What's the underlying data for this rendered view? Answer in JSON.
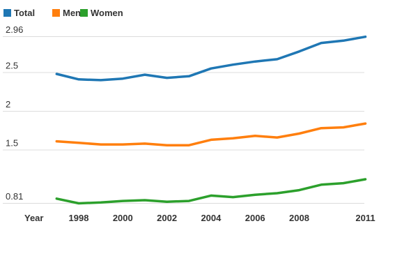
{
  "colors": {
    "background": "#ffffff",
    "text": "#333333",
    "grid": "#dcdcdc",
    "total": "#1f77b4",
    "men": "#ff7f0e",
    "women": "#2ca02c"
  },
  "legend": {
    "items": [
      {
        "label": "Total",
        "color": "#1f77b4"
      },
      {
        "label": "Men",
        "color": "#ff7f0e"
      },
      {
        "label": "Women",
        "color": "#2ca02c"
      }
    ]
  },
  "chart_data": {
    "type": "line",
    "title": "",
    "xlabel": "Year",
    "ylabel": "",
    "x": [
      1997,
      1998,
      1999,
      2000,
      2001,
      2002,
      2003,
      2004,
      2005,
      2006,
      2007,
      2008,
      2009,
      2010,
      2011
    ],
    "series": [
      {
        "name": "Total",
        "color": "#1f77b4",
        "values": [
          2.48,
          2.41,
          2.4,
          2.42,
          2.47,
          2.43,
          2.45,
          2.55,
          2.6,
          2.64,
          2.67,
          2.77,
          2.88,
          2.91,
          2.96
        ]
      },
      {
        "name": "Men",
        "color": "#ff7f0e",
        "values": [
          1.61,
          1.59,
          1.57,
          1.57,
          1.58,
          1.56,
          1.56,
          1.63,
          1.65,
          1.68,
          1.66,
          1.71,
          1.78,
          1.79,
          1.84
        ]
      },
      {
        "name": "Women",
        "color": "#2ca02c",
        "values": [
          0.87,
          0.81,
          0.82,
          0.84,
          0.85,
          0.83,
          0.84,
          0.91,
          0.89,
          0.92,
          0.94,
          0.98,
          1.05,
          1.07,
          1.12
        ]
      }
    ],
    "y_ticks": [
      {
        "label": "2.96",
        "value": 2.96
      },
      {
        "label": "2.5",
        "value": 2.5
      },
      {
        "label": "2",
        "value": 2.0
      },
      {
        "label": "1.5",
        "value": 1.5
      },
      {
        "label": "0.81",
        "value": 0.81
      }
    ],
    "x_ticks": [
      {
        "label": "1998",
        "year": 1998
      },
      {
        "label": "2000",
        "year": 2000
      },
      {
        "label": "2002",
        "year": 2002
      },
      {
        "label": "2004",
        "year": 2004
      },
      {
        "label": "2006",
        "year": 2006
      },
      {
        "label": "2008",
        "year": 2008
      },
      {
        "label": "2011",
        "year": 2011
      }
    ],
    "ylim": [
      0.7,
      3.0
    ],
    "xlim": [
      1997,
      2011
    ],
    "grid": "horizontal-only",
    "legend_position": "top-left"
  }
}
